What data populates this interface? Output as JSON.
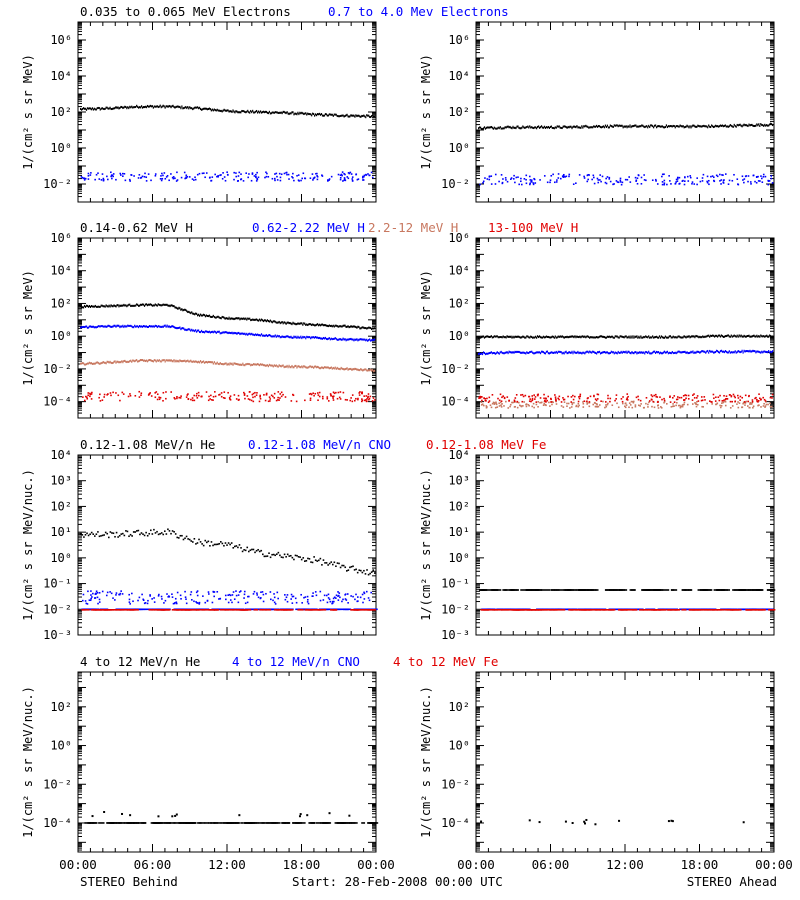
{
  "colors": {
    "black": "#000000",
    "blue": "#0000ff",
    "salmon": "#c87860",
    "red": "#e00000"
  },
  "x_ticks": [
    "00:00",
    "06:00",
    "12:00",
    "18:00",
    "00:00"
  ],
  "footer": {
    "left": "STEREO Behind",
    "center": "Start: 28-Feb-2008 00:00 UTC",
    "right": "STEREO Ahead"
  },
  "chart_data": [
    {
      "type": "scatter",
      "row": 0,
      "ylabel_text": "1/(cm² s sr MeV)",
      "ylim_log10": [
        -3,
        7
      ],
      "ytick_exponents": [
        -2,
        0,
        2,
        4,
        6
      ],
      "legend": [
        {
          "label": "0.035 to 0.065 MeV Electrons",
          "color": "#000000"
        },
        {
          "label": "0.7 to 4.0 Mev Electrons",
          "color": "#0000ff"
        }
      ],
      "panels": [
        {
          "name": "STEREO Behind",
          "series": [
            {
              "color": "#000000",
              "style": "trace",
              "log10_values": [
                2.15,
                2.2,
                2.3,
                2.3,
                2.2,
                2.05,
                2.0,
                1.95,
                1.85,
                1.8,
                1.75
              ],
              "jitter": 0.06
            },
            {
              "color": "#0000ff",
              "style": "scatter",
              "level": -1.6,
              "jitter": 0.25
            }
          ]
        },
        {
          "name": "STEREO Ahead",
          "series": [
            {
              "color": "#000000",
              "style": "trace",
              "log10_values": [
                1.1,
                1.15,
                1.15,
                1.15,
                1.2,
                1.2,
                1.2,
                1.2,
                1.2,
                1.25,
                1.3
              ],
              "jitter": 0.06
            },
            {
              "color": "#0000ff",
              "style": "scatter",
              "level": -1.75,
              "jitter": 0.3
            }
          ]
        }
      ]
    },
    {
      "type": "scatter",
      "row": 1,
      "ylabel_text": "1/(cm² s sr MeV)",
      "ylim_log10": [
        -5,
        6
      ],
      "ytick_exponents": [
        -4,
        -2,
        0,
        2,
        4,
        6
      ],
      "legend": [
        {
          "label": "0.14-0.62 MeV H",
          "color": "#000000"
        },
        {
          "label": "0.62-2.22 MeV H",
          "color": "#0000ff"
        },
        {
          "label": "2.2-12 MeV H",
          "color": "#c87860"
        },
        {
          "label": "13-100 MeV H",
          "color": "#e00000"
        }
      ],
      "panels": [
        {
          "name": "STEREO Behind",
          "series": [
            {
              "color": "#000000",
              "style": "trace",
              "log10_values": [
                1.8,
                1.85,
                1.9,
                1.9,
                1.3,
                1.1,
                1.0,
                0.8,
                0.7,
                0.6,
                0.45
              ],
              "jitter": 0.05
            },
            {
              "color": "#0000ff",
              "style": "trace",
              "log10_values": [
                0.55,
                0.6,
                0.6,
                0.6,
                0.3,
                0.2,
                0.1,
                -0.05,
                -0.1,
                -0.2,
                -0.25
              ],
              "jitter": 0.05
            },
            {
              "color": "#c87860",
              "style": "trace",
              "log10_values": [
                -1.7,
                -1.6,
                -1.5,
                -1.5,
                -1.55,
                -1.7,
                -1.75,
                -1.85,
                -1.9,
                -2.0,
                -2.1
              ],
              "jitter": 0.05
            },
            {
              "color": "#e00000",
              "style": "scatter",
              "level": -3.7,
              "jitter": 0.3
            }
          ]
        },
        {
          "name": "STEREO Ahead",
          "series": [
            {
              "color": "#000000",
              "style": "trace",
              "log10_values": [
                -0.05,
                -0.05,
                -0.05,
                -0.05,
                -0.05,
                -0.05,
                -0.05,
                -0.05,
                0.0,
                0.0,
                0.0
              ],
              "jitter": 0.05
            },
            {
              "color": "#0000ff",
              "style": "trace",
              "log10_values": [
                -1.05,
                -1.0,
                -1.0,
                -1.0,
                -1.0,
                -1.0,
                -1.0,
                -1.0,
                -0.95,
                -0.95,
                -0.95
              ],
              "jitter": 0.06
            },
            {
              "color": "#c87860",
              "style": "scatter",
              "level": -4.2,
              "jitter": 0.2
            },
            {
              "color": "#e00000",
              "style": "scatter",
              "level": -3.8,
              "jitter": 0.25
            }
          ]
        }
      ]
    },
    {
      "type": "scatter",
      "row": 2,
      "ylabel_text": "1/(cm² s sr MeV/nuc.)",
      "ylim_log10": [
        -3,
        4
      ],
      "ytick_exponents": [
        -3,
        -2,
        -1,
        0,
        1,
        2,
        3,
        4
      ],
      "legend": [
        {
          "label": "0.12-1.08 MeV/n He",
          "color": "#000000"
        },
        {
          "label": "0.12-1.08 MeV/n CNO",
          "color": "#0000ff"
        },
        {
          "label": "0.12-1.08 MeV Fe",
          "color": "#e00000"
        }
      ],
      "panels": [
        {
          "name": "STEREO Behind",
          "series": [
            {
              "color": "#000000",
              "style": "dots",
              "log10_values": [
                0.9,
                0.9,
                0.95,
                1.0,
                0.6,
                0.5,
                0.2,
                0.05,
                -0.1,
                -0.4,
                -0.6
              ],
              "jitter": 0.12
            },
            {
              "color": "#0000ff",
              "style": "scatter",
              "level": -1.55,
              "jitter": 0.25
            },
            {
              "color": "#0000ff",
              "style": "flat",
              "level": -2.0
            },
            {
              "color": "#e00000",
              "style": "flat",
              "level": -2.02
            }
          ]
        },
        {
          "name": "STEREO Ahead",
          "series": [
            {
              "color": "#000000",
              "style": "flat",
              "level": -1.25
            },
            {
              "color": "#0000ff",
              "style": "flat",
              "level": -2.0
            },
            {
              "color": "#e00000",
              "style": "flat",
              "level": -2.02
            }
          ]
        }
      ]
    },
    {
      "type": "scatter",
      "row": 3,
      "ylabel_text": "1/(cm² s sr MeV/nuc.)",
      "ylim_log10": [
        -5.5,
        3.8
      ],
      "ytick_exponents": [
        -4,
        -2,
        0,
        2
      ],
      "legend": [
        {
          "label": "4 to 12 MeV/n He",
          "color": "#000000"
        },
        {
          "label": "4 to 12 MeV/n CNO",
          "color": "#0000ff"
        },
        {
          "label": "4 to 12 MeV Fe",
          "color": "#e00000"
        }
      ],
      "panels": [
        {
          "name": "STEREO Behind",
          "series": [
            {
              "color": "#000000",
              "style": "flat",
              "level": -4.0
            },
            {
              "color": "#000000",
              "style": "sparse",
              "level": -3.6
            }
          ]
        },
        {
          "name": "STEREO Ahead",
          "series": [
            {
              "color": "#000000",
              "style": "sparse",
              "level": -4.0
            }
          ]
        }
      ]
    }
  ]
}
